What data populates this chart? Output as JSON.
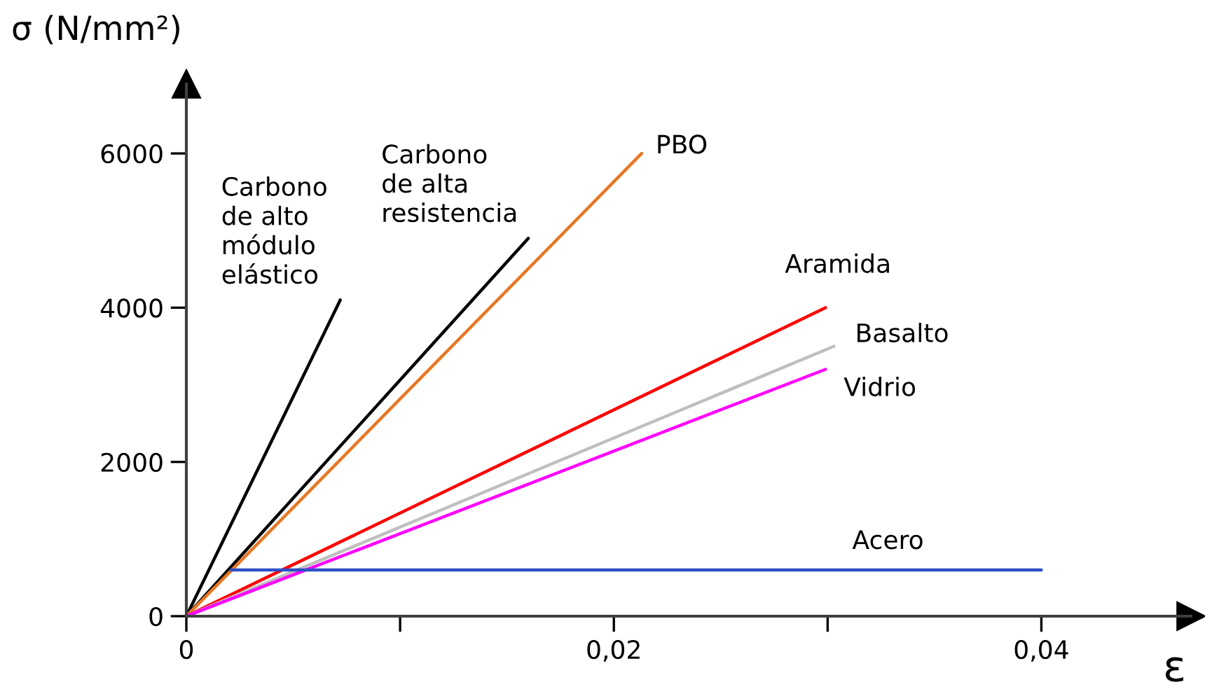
{
  "chart_data": {
    "type": "line",
    "ylabel": "σ (N/mm²)",
    "xlabel": "ε",
    "xlim": [
      0,
      0.047
    ],
    "ylim": [
      0,
      6900
    ],
    "xticks": [
      0,
      {
        "value": 0.01,
        "label": null
      },
      {
        "value": 0.02,
        "label": "0,02"
      },
      {
        "value": 0.03,
        "label": null
      },
      {
        "value": 0.04,
        "label": "0,04"
      }
    ],
    "yticks": [
      0,
      2000,
      4000,
      6000
    ],
    "grid": false,
    "legend": false,
    "marker": "none",
    "line_style": "solid",
    "series": [
      {
        "name": "Carbono\nde alto\nmódulo\nelástico",
        "color": "#000000",
        "x": [
          0,
          0.0072
        ],
        "values": [
          0,
          4100
        ]
      },
      {
        "name": "Carbono\nde alta\nresistencia",
        "color": "#000000",
        "x": [
          0,
          0.016
        ],
        "values": [
          0,
          4900
        ]
      },
      {
        "name": "PBO",
        "color": "#e87722",
        "x": [
          0,
          0.0213
        ],
        "values": [
          0,
          6000
        ]
      },
      {
        "name": "Aramida",
        "color": "#ff0000",
        "x": [
          0,
          0.0299
        ],
        "values": [
          0,
          4000
        ]
      },
      {
        "name": "Basalto",
        "color": "#bfbfbf",
        "x": [
          0,
          0.0303
        ],
        "values": [
          0,
          3500
        ]
      },
      {
        "name": "Vidrio",
        "color": "#ff00ff",
        "x": [
          0,
          0.0299
        ],
        "values": [
          0,
          3200
        ]
      },
      {
        "name": "Acero",
        "color": "#2e4fc7",
        "x": [
          0.0021,
          0.04
        ],
        "values": [
          600,
          600
        ]
      }
    ]
  }
}
